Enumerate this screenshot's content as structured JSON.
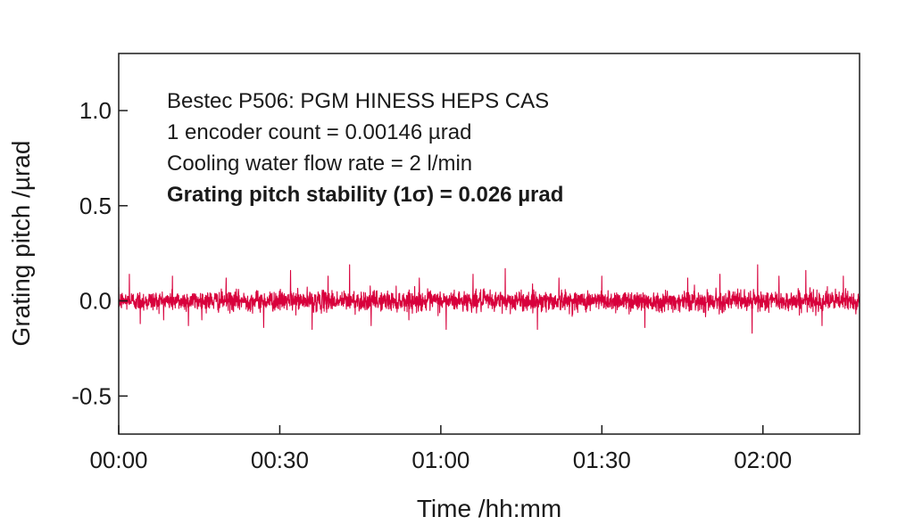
{
  "chart_data": {
    "type": "line",
    "xlabel": "Time /hh:mm",
    "ylabel": "Grating pitch /µrad",
    "xlim_minutes": [
      0,
      138
    ],
    "ylim": [
      -0.7,
      1.3
    ],
    "x_ticks": [
      {
        "value": 0,
        "label": "00:00"
      },
      {
        "value": 30,
        "label": "00:30"
      },
      {
        "value": 60,
        "label": "01:00"
      },
      {
        "value": 90,
        "label": "01:30"
      },
      {
        "value": 120,
        "label": "02:00"
      }
    ],
    "y_ticks": [
      {
        "value": 1.0,
        "label": "1.0"
      },
      {
        "value": 0.5,
        "label": "0.5"
      },
      {
        "value": 0.0,
        "label": "0.0"
      },
      {
        "value": -0.5,
        "label": "-0.5"
      }
    ],
    "annotations": [
      "Bestec P506: PGM HINESS HEPS CAS",
      "1 encoder count = 0.00146 µrad",
      "Cooling water flow rate = 2 l/min",
      "Grating pitch stability (1σ) = 0.026 µrad"
    ],
    "series": [
      {
        "color": "#d8003c",
        "noise_sigma": 0.026,
        "peaks": [
          {
            "x": 2,
            "y": 0.14
          },
          {
            "x": 4,
            "y": -0.12
          },
          {
            "x": 10,
            "y": 0.13
          },
          {
            "x": 13,
            "y": -0.13
          },
          {
            "x": 20,
            "y": 0.12
          },
          {
            "x": 27,
            "y": -0.14
          },
          {
            "x": 32,
            "y": 0.16
          },
          {
            "x": 36,
            "y": -0.15
          },
          {
            "x": 39,
            "y": 0.13
          },
          {
            "x": 43,
            "y": 0.19
          },
          {
            "x": 47,
            "y": -0.13
          },
          {
            "x": 56,
            "y": 0.12
          },
          {
            "x": 61,
            "y": -0.15
          },
          {
            "x": 66,
            "y": 0.14
          },
          {
            "x": 72,
            "y": 0.17
          },
          {
            "x": 78,
            "y": -0.15
          },
          {
            "x": 82,
            "y": 0.12
          },
          {
            "x": 90,
            "y": 0.13
          },
          {
            "x": 98,
            "y": -0.14
          },
          {
            "x": 106,
            "y": 0.12
          },
          {
            "x": 112,
            "y": 0.14
          },
          {
            "x": 118,
            "y": -0.17
          },
          {
            "x": 119,
            "y": 0.19
          },
          {
            "x": 123,
            "y": 0.13
          },
          {
            "x": 128,
            "y": 0.16
          },
          {
            "x": 131,
            "y": -0.13
          },
          {
            "x": 135,
            "y": 0.13
          }
        ]
      }
    ]
  }
}
